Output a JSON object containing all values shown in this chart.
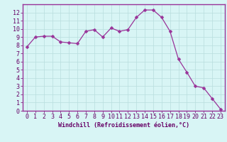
{
  "x": [
    0,
    1,
    2,
    3,
    4,
    5,
    6,
    7,
    8,
    9,
    10,
    11,
    12,
    13,
    14,
    15,
    16,
    17,
    18,
    19,
    20,
    21,
    22,
    23
  ],
  "y": [
    7.8,
    9.0,
    9.1,
    9.1,
    8.4,
    8.3,
    8.2,
    9.7,
    9.9,
    9.0,
    10.1,
    9.7,
    9.9,
    11.4,
    12.3,
    12.3,
    11.4,
    9.7,
    6.3,
    4.7,
    3.0,
    2.8,
    1.5,
    0.2
  ],
  "line_color": "#993399",
  "marker_color": "#993399",
  "bg_color": "#d8f5f5",
  "grid_color": "#b8dede",
  "axis_label_color": "#660066",
  "tick_label_color": "#660066",
  "xlabel": "Windchill (Refroidissement éolien,°C)",
  "xlim": [
    -0.5,
    23.5
  ],
  "ylim": [
    0,
    13
  ],
  "yticks": [
    0,
    1,
    2,
    3,
    4,
    5,
    6,
    7,
    8,
    9,
    10,
    11,
    12
  ],
  "xticks": [
    0,
    1,
    2,
    3,
    4,
    5,
    6,
    7,
    8,
    9,
    10,
    11,
    12,
    13,
    14,
    15,
    16,
    17,
    18,
    19,
    20,
    21,
    22,
    23
  ],
  "figsize": [
    3.2,
    2.0
  ],
  "dpi": 100,
  "font_size": 6,
  "line_width": 0.9,
  "marker_size": 2.5,
  "border_color": "#993399"
}
